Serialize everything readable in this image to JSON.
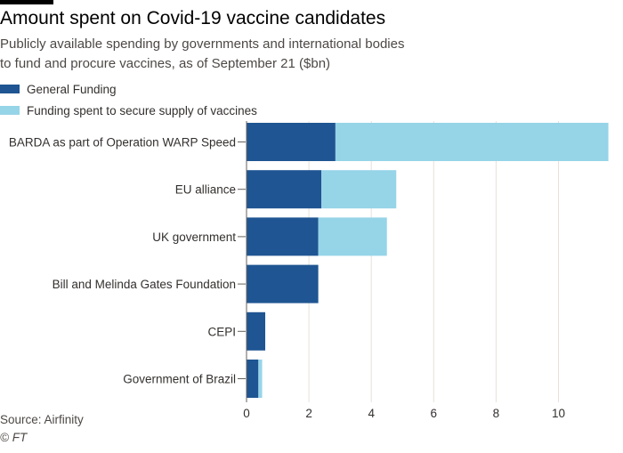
{
  "header": {
    "title": "Amount spent on Covid-19 vaccine candidates",
    "subtitle": "Publicly available spending by governments and international bodies to fund and procure vaccines, as of September 21 ($bn)"
  },
  "legend": [
    {
      "label": "General Funding",
      "color": "#1f5592"
    },
    {
      "label": "Funding spent to secure supply of vaccines",
      "color": "#96d4e8"
    }
  ],
  "footer": {
    "source": "Source: Airfinity",
    "credit": "© FT"
  },
  "chart_data": {
    "type": "bar",
    "orientation": "horizontal",
    "stacked": true,
    "categories": [
      "BARDA as part of Operation WARP Speed",
      "EU alliance",
      "UK government",
      "Bill and Melinda Gates Foundation",
      "CEPI",
      "Government of Brazil"
    ],
    "series": [
      {
        "name": "General Funding",
        "color": "#1f5592",
        "values": [
          2.85,
          2.4,
          2.3,
          2.3,
          0.6,
          0.38
        ]
      },
      {
        "name": "Funding spent to secure supply of vaccines",
        "color": "#96d4e8",
        "values": [
          8.75,
          2.4,
          2.2,
          0,
          0,
          0.12
        ]
      }
    ],
    "xlim": [
      0,
      11.6
    ],
    "xticks": [
      0,
      2,
      4,
      6,
      8,
      10
    ],
    "grid": true,
    "legend_position": "top-left"
  }
}
